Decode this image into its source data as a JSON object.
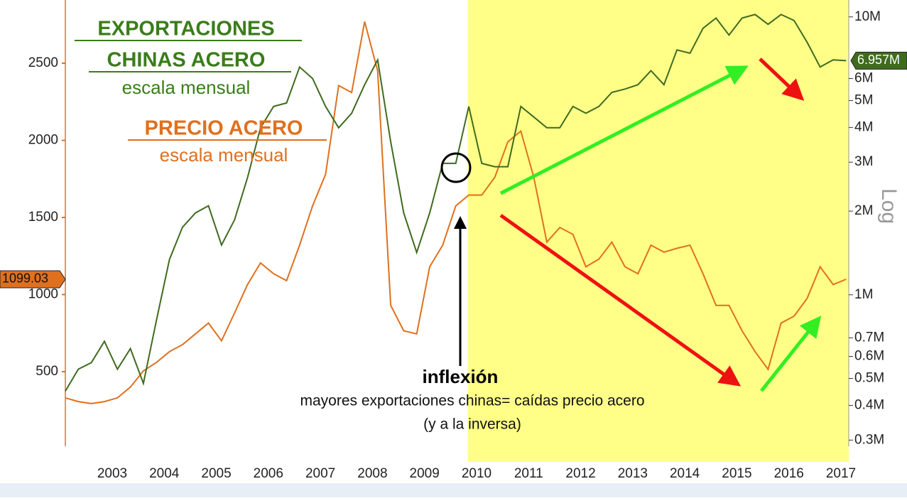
{
  "chart_data": {
    "type": "line",
    "annotations": [
      "EXPORTACIONES",
      "CHINAS ACERO",
      "escala mensual",
      "PRECIO ACERO",
      "escala mensual",
      "inflexión",
      "mayores exportaciones chinas= caídas precio acero",
      "(y a la inversa)"
    ],
    "x": [
      2002.6,
      2002.85,
      2003.1,
      2003.35,
      2003.6,
      2003.85,
      2004.1,
      2004.35,
      2004.6,
      2004.85,
      2005.1,
      2005.35,
      2005.6,
      2005.85,
      2006.1,
      2006.35,
      2006.6,
      2006.85,
      2007.1,
      2007.35,
      2007.6,
      2007.85,
      2008.1,
      2008.35,
      2008.6,
      2008.85,
      2009.1,
      2009.35,
      2009.6,
      2009.85,
      2010.1,
      2010.35,
      2010.6,
      2010.85,
      2011.1,
      2011.35,
      2011.6,
      2011.85,
      2012.1,
      2012.35,
      2012.6,
      2012.85,
      2013.1,
      2013.35,
      2013.6,
      2013.85,
      2014.1,
      2014.35,
      2014.6,
      2014.85,
      2015.1,
      2015.35,
      2015.6,
      2015.85,
      2016.1,
      2016.35,
      2016.6,
      2016.85,
      2017.1,
      2017.35,
      2017.6
    ],
    "xlim": [
      2002.6,
      2017.65
    ],
    "xticks": [
      {
        "value": 2003.5,
        "label": "2003"
      },
      {
        "value": 2004.5,
        "label": "2004"
      },
      {
        "value": 2005.5,
        "label": "2005"
      },
      {
        "value": 2006.5,
        "label": "2006"
      },
      {
        "value": 2007.5,
        "label": "2007"
      },
      {
        "value": 2008.5,
        "label": "2008"
      },
      {
        "value": 2009.5,
        "label": "2009"
      },
      {
        "value": 2010.5,
        "label": "2010"
      },
      {
        "value": 2011.5,
        "label": "2011"
      },
      {
        "value": 2012.5,
        "label": "2012"
      },
      {
        "value": 2013.5,
        "label": "2013"
      },
      {
        "value": 2014.5,
        "label": "2014"
      },
      {
        "value": 2015.5,
        "label": "2015"
      },
      {
        "value": 2016.5,
        "label": "2016"
      },
      {
        "value": 2017.5,
        "label": "2017"
      }
    ],
    "ylim": [
      16,
      2910
    ],
    "yticks": [
      500,
      1000,
      1500,
      2000,
      2500
    ],
    "y2lim": [
      285000,
      11500000
    ],
    "y2log": true,
    "y2label": "Log",
    "y2ticks": [
      {
        "value": 10000000,
        "label": "10M"
      },
      {
        "value": 6000000,
        "label": "6M"
      },
      {
        "value": 5000000,
        "label": "5M"
      },
      {
        "value": 4000000,
        "label": "4M"
      },
      {
        "value": 3000000,
        "label": "3M"
      },
      {
        "value": 2000000,
        "label": "2M"
      },
      {
        "value": 1000000,
        "label": "1M"
      },
      {
        "value": 700000,
        "label": "0.7M"
      },
      {
        "value": 600000,
        "label": "0.6M"
      },
      {
        "value": 500000,
        "label": "0.5M"
      },
      {
        "value": 400000,
        "label": "0.4M"
      },
      {
        "value": 300000,
        "label": "0.3M"
      }
    ],
    "shade_x": [
      2010.33,
      2017.65
    ],
    "shade_color": "#ffff88",
    "grid": false,
    "series": [
      {
        "name": "PRECIO ACERO",
        "color": "#e0701e",
        "values": [
          330,
          306,
          293,
          306,
          330,
          400,
          505,
          560,
          630,
          675,
          745,
          815,
          700,
          880,
          1065,
          1205,
          1135,
          1090,
          1320,
          1575,
          1780,
          2355,
          2310,
          2770,
          2450,
          930,
          765,
          745,
          1180,
          1320,
          1575,
          1645,
          1645,
          1760,
          1990,
          2060,
          1760,
          1340,
          1435,
          1390,
          1180,
          1230,
          1340,
          1180,
          1135,
          1320,
          1275,
          1300,
          1320,
          1135,
          930,
          930,
          765,
          630,
          515,
          815,
          860,
          975,
          1180,
          1065,
          1099.03
        ],
        "current_value": {
          "value": 1099.03,
          "label": "1099.03"
        }
      },
      {
        "name": "EXPORTACIONES CHINAS ACERO",
        "color": "#3f6b1e",
        "axis": "y2",
        "values": [
          450000,
          540000,
          570000,
          680000,
          540000,
          640000,
          480000,
          810000,
          1340000,
          1750000,
          1970000,
          2090000,
          1510000,
          1860000,
          2640000,
          3990000,
          4760000,
          4900000,
          6600000,
          6000000,
          4760000,
          3990000,
          4500000,
          5700000,
          7000000,
          3550000,
          1970000,
          1420000,
          1970000,
          2970000,
          2970000,
          4760000,
          2970000,
          2890000,
          2890000,
          4760000,
          4360000,
          3990000,
          3990000,
          4760000,
          4500000,
          4760000,
          5350000,
          5500000,
          5700000,
          6400000,
          5700000,
          7600000,
          7400000,
          9100000,
          9900000,
          8600000,
          9900000,
          10200000,
          9400000,
          10200000,
          9700000,
          8100000,
          6600000,
          7000000,
          6957000
        ],
        "current_value": {
          "value": 6957000,
          "label": "6.957M"
        }
      }
    ]
  }
}
